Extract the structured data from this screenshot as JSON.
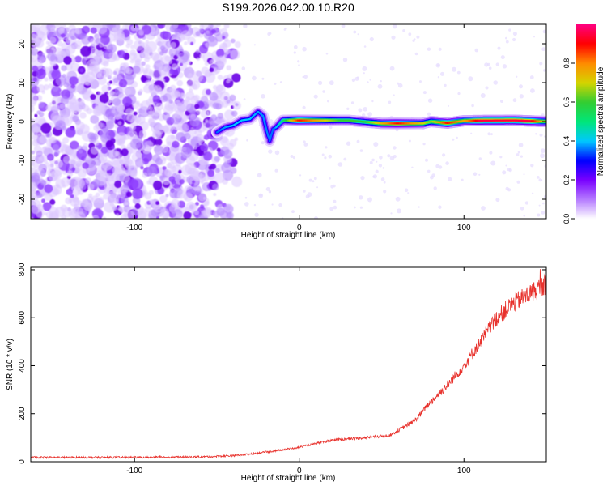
{
  "figure_title": "S199.2026.042.00.10.R20",
  "chart_data": [
    {
      "type": "heatmap",
      "title": "S199.2026.042.00.10.R20",
      "xlabel": "Height of straight line (km)",
      "ylabel": "Frequency (Hz)",
      "xlim": [
        -163,
        150
      ],
      "ylim": [
        -25,
        25
      ],
      "x_ticks": [
        -100,
        0,
        100
      ],
      "y_ticks": [
        -20,
        -10,
        0,
        10,
        20
      ],
      "colorbar": {
        "label": "Normalized spectral amplitude",
        "range": [
          0.0,
          1.0
        ],
        "ticks": [
          0.0,
          0.2,
          0.4,
          0.6,
          0.8
        ],
        "colors": [
          "#ffffff",
          "#b57cff",
          "#7a00ff",
          "#0000ff",
          "#00c8ff",
          "#00e67a",
          "#32cd32",
          "#d4d400",
          "#ff8c00",
          "#ff0000",
          "#ff0080"
        ]
      },
      "noise_region_x": [
        -163,
        -52
      ],
      "noise_fade_x": [
        -52,
        -35
      ],
      "ridge": [
        {
          "x": -50,
          "y": -2.8
        },
        {
          "x": -45,
          "y": -1.5
        },
        {
          "x": -40,
          "y": -1.0
        },
        {
          "x": -35,
          "y": 0.3
        },
        {
          "x": -30,
          "y": 0.6
        },
        {
          "x": -25,
          "y": 2.5
        },
        {
          "x": -22,
          "y": 1.5
        },
        {
          "x": -20,
          "y": -2.0
        },
        {
          "x": -18,
          "y": -5.0
        },
        {
          "x": -16,
          "y": -2.0
        },
        {
          "x": -14,
          "y": -1.5
        },
        {
          "x": -10,
          "y": 0.3
        },
        {
          "x": 0,
          "y": 0.3
        },
        {
          "x": 30,
          "y": 0.3
        },
        {
          "x": 50,
          "y": -0.5
        },
        {
          "x": 75,
          "y": -0.5
        },
        {
          "x": 80,
          "y": 0.0
        },
        {
          "x": 90,
          "y": -0.4
        },
        {
          "x": 100,
          "y": 0.2
        },
        {
          "x": 130,
          "y": 0.3
        },
        {
          "x": 150,
          "y": 0.0
        }
      ],
      "ridge_intensity": [
        {
          "x": -50,
          "v": 0.35
        },
        {
          "x": -40,
          "v": 0.4
        },
        {
          "x": -30,
          "v": 0.4
        },
        {
          "x": -15,
          "v": 0.35
        },
        {
          "x": -10,
          "v": 0.5
        },
        {
          "x": 0,
          "v": 0.9
        },
        {
          "x": 25,
          "v": 0.6
        },
        {
          "x": 40,
          "v": 0.6
        },
        {
          "x": 60,
          "v": 0.9
        },
        {
          "x": 80,
          "v": 0.65
        },
        {
          "x": 90,
          "v": 0.9
        },
        {
          "x": 100,
          "v": 0.75
        },
        {
          "x": 110,
          "v": 0.95
        },
        {
          "x": 140,
          "v": 0.95
        },
        {
          "x": 150,
          "v": 0.7
        }
      ]
    },
    {
      "type": "line",
      "xlabel": "Height of straight line (km)",
      "ylabel": "SNR (10 * v/v)",
      "xlim": [
        -163,
        150
      ],
      "ylim": [
        0,
        810
      ],
      "x_ticks": [
        -100,
        0,
        100
      ],
      "y_ticks": [
        0,
        200,
        400,
        600,
        800
      ],
      "series": [
        {
          "name": "SNR",
          "color": "#e8322d",
          "trend": [
            {
              "x": -163,
              "y": 18
            },
            {
              "x": -100,
              "y": 18
            },
            {
              "x": -60,
              "y": 20
            },
            {
              "x": -40,
              "y": 25
            },
            {
              "x": -20,
              "y": 40
            },
            {
              "x": 0,
              "y": 60
            },
            {
              "x": 10,
              "y": 75
            },
            {
              "x": 20,
              "y": 90
            },
            {
              "x": 40,
              "y": 100
            },
            {
              "x": 55,
              "y": 110
            },
            {
              "x": 70,
              "y": 170
            },
            {
              "x": 80,
              "y": 250
            },
            {
              "x": 90,
              "y": 320
            },
            {
              "x": 100,
              "y": 400
            },
            {
              "x": 110,
              "y": 500
            },
            {
              "x": 120,
              "y": 600
            },
            {
              "x": 130,
              "y": 660
            },
            {
              "x": 140,
              "y": 700
            },
            {
              "x": 150,
              "y": 740
            }
          ]
        }
      ]
    }
  ]
}
